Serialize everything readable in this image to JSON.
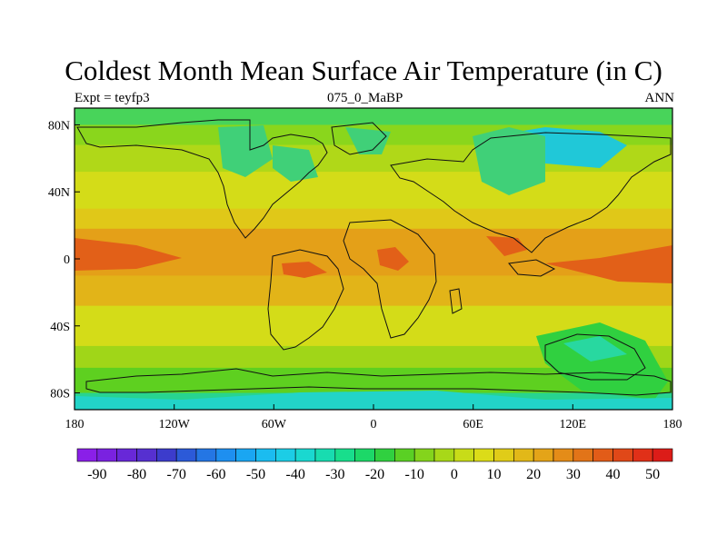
{
  "title": "Coldest Month Mean Surface Air Temperature (in C)",
  "subtitle_left": "Expt = teyfp3",
  "subtitle_center": "075_0_MaBP",
  "subtitle_right": "ANN",
  "lat_ticks": [
    "80N",
    "40N",
    "0",
    "40S",
    "80S"
  ],
  "lon_ticks": [
    "180",
    "120W",
    "60W",
    "0",
    "60E",
    "120E",
    "180"
  ],
  "colorbar": {
    "labels": [
      "-90",
      "-80",
      "-70",
      "-60",
      "-50",
      "-40",
      "-30",
      "-20",
      "-10",
      "0",
      "10",
      "20",
      "30",
      "40",
      "50"
    ],
    "colors": [
      "#8a1fe8",
      "#7a22e0",
      "#6828d8",
      "#5630d0",
      "#3c3ccc",
      "#2c5ad8",
      "#2476e4",
      "#1e8ff0",
      "#1aa6f2",
      "#1bbcf0",
      "#1ccde6",
      "#1ad8d0",
      "#18dcb0",
      "#18de8c",
      "#1cd868",
      "#30d040",
      "#5ad024",
      "#84d41c",
      "#a8d818",
      "#c8dc18",
      "#dcdc18",
      "#e0cc18",
      "#e2b818",
      "#e4a418",
      "#e48c18",
      "#e27418",
      "#e25c18",
      "#e04818",
      "#e03018",
      "#dc1c18"
    ]
  },
  "map": {
    "bands": [
      {
        "lat_top": 90,
        "lat_bottom": 80,
        "color": "#48d45a"
      },
      {
        "lat_top": 80,
        "lat_bottom": 68,
        "color": "#8ad61c"
      },
      {
        "lat_top": 68,
        "lat_bottom": 52,
        "color": "#b0d818"
      },
      {
        "lat_top": 52,
        "lat_bottom": 30,
        "color": "#d4dc18"
      },
      {
        "lat_top": 30,
        "lat_bottom": 18,
        "color": "#e0c818"
      },
      {
        "lat_top": 18,
        "lat_bottom": -10,
        "color": "#e4a018"
      },
      {
        "lat_top": -10,
        "lat_bottom": -28,
        "color": "#e2b418"
      },
      {
        "lat_top": -28,
        "lat_bottom": -52,
        "color": "#d4dc18"
      },
      {
        "lat_top": -52,
        "lat_bottom": -65,
        "color": "#a0d618"
      },
      {
        "lat_top": -65,
        "lat_bottom": -80,
        "color": "#5ed020"
      },
      {
        "lat_top": -80,
        "lat_bottom": -90,
        "color": "#28d490"
      }
    ]
  }
}
